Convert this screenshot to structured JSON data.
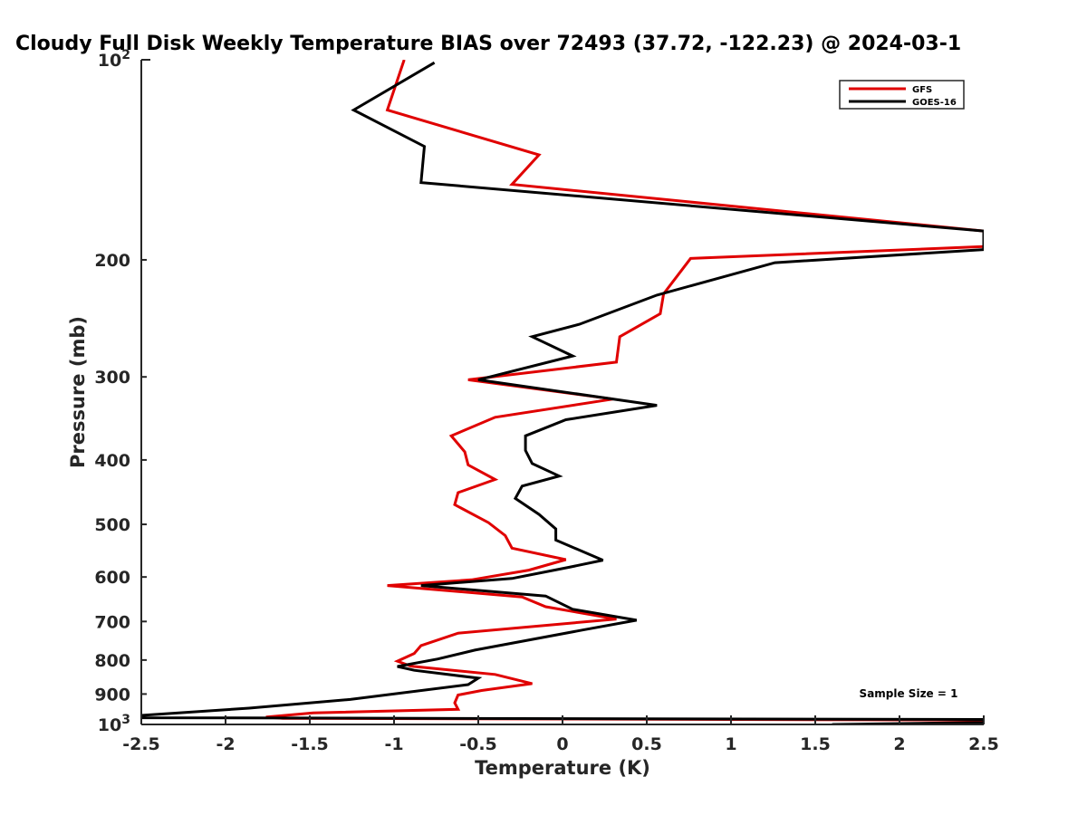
{
  "chart_data": {
    "type": "line",
    "title": "Cloudy Full Disk Weekly Temperature BIAS over 72493 (37.72, -122.23) @ 2024-03-1",
    "xlabel": "Temperature (K)",
    "ylabel": "Pressure (mb)",
    "xlim": [
      -2.5,
      2.5
    ],
    "ylim": [
      100,
      1000
    ],
    "y_scale": "log",
    "y_reversed": true,
    "x_ticks": [
      "-2.5",
      "-2",
      "-1.5",
      "-1",
      "-0.5",
      "0",
      "0.5",
      "1",
      "1.5",
      "2",
      "2.5"
    ],
    "x_tick_values": [
      -2.5,
      -2,
      -1.5,
      -1,
      -0.5,
      0,
      0.5,
      1,
      1.5,
      2,
      2.5
    ],
    "y_ticks": [
      {
        "value": 100,
        "base": "10",
        "exp": "2"
      },
      {
        "value": 200,
        "label": "200"
      },
      {
        "value": 300,
        "label": "300"
      },
      {
        "value": 400,
        "label": "400"
      },
      {
        "value": 500,
        "label": "500"
      },
      {
        "value": 600,
        "label": "600"
      },
      {
        "value": 700,
        "label": "700"
      },
      {
        "value": 800,
        "label": "800"
      },
      {
        "value": 900,
        "label": "900"
      },
      {
        "value": 1000,
        "base": "10",
        "exp": "3"
      }
    ],
    "grid": false,
    "legend_position": "top-right",
    "annotation": "Sample Size = 1",
    "series": [
      {
        "name": "GFS",
        "color": "#e00000",
        "points": [
          [
            -0.94,
            100
          ],
          [
            -1.04,
            119
          ],
          [
            -0.14,
            139
          ],
          [
            -0.3,
            154
          ],
          [
            2.5,
            181
          ],
          [
            2.5,
            191
          ],
          [
            0.76,
            199
          ],
          [
            0.6,
            225
          ],
          [
            0.58,
            241
          ],
          [
            0.34,
            261
          ],
          [
            0.32,
            285
          ],
          [
            -0.56,
            303
          ],
          [
            0.3,
            324
          ],
          [
            -0.4,
            345
          ],
          [
            -0.66,
            368
          ],
          [
            -0.58,
            389
          ],
          [
            -0.56,
            407
          ],
          [
            -0.4,
            428
          ],
          [
            -0.62,
            448
          ],
          [
            -0.64,
            467
          ],
          [
            -0.44,
            497
          ],
          [
            -0.34,
            520
          ],
          [
            -0.3,
            543
          ],
          [
            0.02,
            565
          ],
          [
            -0.2,
            586
          ],
          [
            -0.54,
            606
          ],
          [
            -1.04,
            618
          ],
          [
            -0.24,
            643
          ],
          [
            -0.1,
            665
          ],
          [
            0.32,
            694
          ],
          [
            -0.62,
            729
          ],
          [
            -0.84,
            761
          ],
          [
            -0.88,
            782
          ],
          [
            -0.98,
            803
          ],
          [
            -0.9,
            817
          ],
          [
            -0.4,
            841
          ],
          [
            -0.18,
            868
          ],
          [
            -0.48,
            889
          ],
          [
            -0.62,
            903
          ],
          [
            -0.64,
            928
          ],
          [
            -0.62,
            949
          ],
          [
            -1.48,
            961
          ],
          [
            -1.76,
            975
          ],
          [
            -1.66,
            979
          ],
          [
            2.5,
            985
          ],
          [
            2.5,
            988
          ]
        ]
      },
      {
        "name": "GOES-16",
        "color": "#000000",
        "points": [
          [
            -0.76,
            101
          ],
          [
            -1.24,
            119
          ],
          [
            -0.82,
            135
          ],
          [
            -0.84,
            153
          ],
          [
            2.5,
            181
          ],
          [
            2.5,
            193
          ],
          [
            1.26,
            202
          ],
          [
            0.56,
            226
          ],
          [
            0.1,
            250
          ],
          [
            -0.18,
            261
          ],
          [
            0.06,
            279
          ],
          [
            -0.5,
            303
          ],
          [
            0.56,
            331
          ],
          [
            0.02,
            348
          ],
          [
            -0.22,
            368
          ],
          [
            -0.22,
            387
          ],
          [
            -0.18,
            405
          ],
          [
            -0.02,
            423
          ],
          [
            -0.24,
            438
          ],
          [
            -0.28,
            457
          ],
          [
            -0.14,
            483
          ],
          [
            -0.04,
            508
          ],
          [
            -0.04,
            528
          ],
          [
            0.24,
            566
          ],
          [
            0.04,
            580
          ],
          [
            -0.3,
            603
          ],
          [
            -0.84,
            618
          ],
          [
            -0.1,
            641
          ],
          [
            0.06,
            671
          ],
          [
            0.44,
            697
          ],
          [
            0.12,
            721
          ],
          [
            -0.52,
            773
          ],
          [
            -0.74,
            797
          ],
          [
            -0.98,
            818
          ],
          [
            -0.88,
            829
          ],
          [
            -0.5,
            852
          ],
          [
            -0.56,
            871
          ],
          [
            -1.26,
            917
          ],
          [
            -1.86,
            945
          ],
          [
            -2.5,
            969
          ],
          [
            -2.5,
            974
          ],
          [
            -2.5,
            977
          ],
          [
            2.5,
            983
          ],
          [
            2.5,
            993
          ],
          [
            1.6,
            1000
          ]
        ]
      }
    ]
  }
}
